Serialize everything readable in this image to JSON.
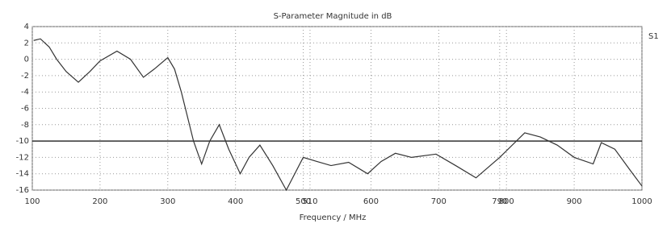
{
  "chart_data": {
    "type": "line",
    "title": "S-Parameter Magnitude in dB",
    "x_label": "Frequency / MHz",
    "x": [
      102,
      112,
      125,
      136,
      150,
      168,
      185,
      200,
      225,
      245,
      264,
      280,
      300,
      310,
      320,
      338,
      350,
      362,
      376,
      390,
      407,
      420,
      436,
      455,
      475,
      500,
      520,
      541,
      567,
      595,
      615,
      636,
      660,
      696,
      725,
      755,
      790,
      827,
      850,
      875,
      900,
      928,
      940,
      960,
      982,
      1000
    ],
    "series": [
      {
        "name": "S1",
        "color": "#333333",
        "values": [
          2.3,
          2.5,
          1.5,
          0,
          -1.5,
          -2.8,
          -1.5,
          -0.2,
          1.0,
          0,
          -2.2,
          -1.2,
          0.2,
          -1.2,
          -4,
          -10,
          -12.8,
          -10,
          -8,
          -11,
          -14,
          -12,
          -10.5,
          -13,
          -16,
          -12,
          -12.5,
          -13,
          -12.6,
          -14,
          -12.5,
          -11.5,
          -12,
          -11.6,
          -13,
          -14.5,
          -12,
          -9,
          -9.5,
          -10.5,
          -12,
          -12.8,
          -10.2,
          -11,
          -13.5,
          -15.5
        ]
      }
    ],
    "xlim": [
      100,
      1000
    ],
    "xticks": [
      100,
      200,
      300,
      400,
      500,
      510,
      600,
      700,
      790,
      800,
      900,
      1000
    ],
    "ylim": [
      -16,
      4
    ],
    "yticks": [
      4,
      2,
      0,
      -2,
      -4,
      -6,
      -8,
      -10,
      -12,
      -14,
      -16
    ],
    "grid": true,
    "hline": -10
  }
}
